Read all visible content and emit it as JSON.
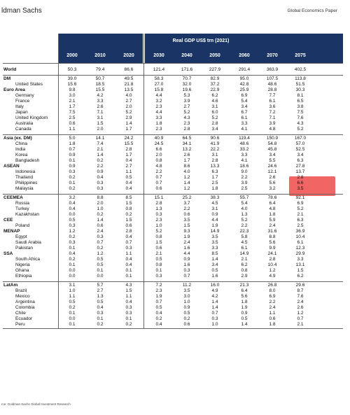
{
  "header": {
    "brand": "ldman Sachs",
    "publication": "Global Economics Paper"
  },
  "table": {
    "title": "Real GDP US$ trn (2021)",
    "years": [
      "2000",
      "2010",
      "2020",
      "2030",
      "2040",
      "2050",
      "2060",
      "2070",
      "2075"
    ],
    "groups": [
      {
        "rows": [
          {
            "label": "World",
            "style": "bold",
            "values": [
              "50.3",
              "79.4",
              "86.6",
              "121.4",
              "171.6",
              "227.9",
              "291.4",
              "363.9",
              "402.5"
            ]
          }
        ]
      },
      {
        "rows": [
          {
            "label": "DM",
            "style": "bold",
            "values": [
              "39.0",
              "50.7",
              "49.5",
              "58.3",
              "70.7",
              "82.9",
              "95.0",
              "107.5",
              "113.8"
            ]
          },
          {
            "label": "United States",
            "style": "sub",
            "values": [
              "15.6",
              "18.5",
              "21.8",
              "27.0",
              "32.0",
              "37.2",
              "42.8",
              "48.6",
              "51.5"
            ]
          },
          {
            "label": "Euro Area",
            "style": "bold",
            "values": [
              "9.8",
              "15.5",
              "13.5",
              "15.8",
              "19.6",
              "22.9",
              "25.9",
              "28.8",
              "30.3"
            ]
          },
          {
            "label": "Germany",
            "style": "sub",
            "values": [
              "3.0",
              "4.2",
              "4.0",
              "4.4",
              "5.3",
              "6.2",
              "6.9",
              "7.7",
              "8.1"
            ]
          },
          {
            "label": "France",
            "style": "sub",
            "values": [
              "2.1",
              "3.3",
              "2.7",
              "3.2",
              "3.9",
              "4.6",
              "5.4",
              "6.1",
              "6.5"
            ]
          },
          {
            "label": "Italy",
            "style": "sub",
            "values": [
              "1.7",
              "2.6",
              "2.0",
              "2.3",
              "2.7",
              "3.1",
              "3.4",
              "3.6",
              "3.8"
            ]
          },
          {
            "label": "Japan",
            "style": "sub",
            "values": [
              "7.5",
              "7.1",
              "5.2",
              "4.4",
              "5.2",
              "6.0",
              "6.7",
              "7.2",
              "7.5"
            ]
          },
          {
            "label": "United Kingdom",
            "style": "sub",
            "values": [
              "2.5",
              "3.1",
              "2.9",
              "3.3",
              "4.3",
              "5.2",
              "6.1",
              "7.1",
              "7.6"
            ]
          },
          {
            "label": "Australia",
            "style": "sub",
            "values": [
              "0.6",
              "1.5",
              "1.4",
              "1.8",
              "2.3",
              "2.8",
              "3.3",
              "3.9",
              "4.3"
            ]
          },
          {
            "label": "Canada",
            "style": "sub",
            "values": [
              "1.1",
              "2.0",
              "1.7",
              "2.3",
              "2.8",
              "3.4",
              "4.1",
              "4.8",
              "5.2"
            ]
          }
        ]
      },
      {
        "rows": [
          {
            "label": "Asia (ex. DM)",
            "style": "bold",
            "values": [
              "5.0",
              "14.1",
              "24.2",
              "40.9",
              "64.5",
              "90.6",
              "119.4",
              "150.9",
              "167.0"
            ]
          },
          {
            "label": "China",
            "style": "sub",
            "values": [
              "1.8",
              "7.4",
              "15.5",
              "24.5",
              "34.1",
              "41.9",
              "48.6",
              "54.8",
              "57.0"
            ]
          },
          {
            "label": "India",
            "style": "sub",
            "values": [
              "0.7",
              "2.1",
              "2.8",
              "6.6",
              "13.2",
              "22.2",
              "33.2",
              "45.8",
              "52.5"
            ]
          },
          {
            "label": "Korea",
            "style": "sub",
            "values": [
              "0.9",
              "1.4",
              "1.7",
              "2.0",
              "2.6",
              "3.1",
              "3.3",
              "3.4",
              "3.4"
            ]
          },
          {
            "label": "Bangladesh",
            "style": "sub",
            "values": [
              "0.1",
              "0.2",
              "0.4",
              "0.8",
              "1.7",
              "2.8",
              "4.1",
              "5.5",
              "6.3"
            ]
          },
          {
            "label": "ASEAN",
            "style": "bold",
            "values": [
              "0.9",
              "2.2",
              "2.7",
              "4.8",
              "8.6",
              "13.3",
              "18.6",
              "24.6",
              "27.8"
            ]
          },
          {
            "label": "Indonesia",
            "style": "sub",
            "values": [
              "0.3",
              "0.9",
              "1.1",
              "2.2",
              "4.0",
              "6.3",
              "9.0",
              "12.1",
              "13.7"
            ]
          },
          {
            "label": "Thailand",
            "style": "sub",
            "values": [
              "0.2",
              "0.4",
              "0.5",
              "0.7",
              "1.2",
              "1.7",
              "2.2",
              "2.6",
              "2.8"
            ]
          },
          {
            "label": "Philippines",
            "style": "sub",
            "values": [
              "0.1",
              "0.3",
              "0.4",
              "0.7",
              "1.4",
              "2.5",
              "3.9",
              "5.6",
              "6.6"
            ]
          },
          {
            "label": "Malaysia",
            "style": "sub",
            "values": [
              "0.2",
              "0.3",
              "0.4",
              "0.6",
              "1.2",
              "1.8",
              "2.5",
              "3.2",
              "3.5"
            ]
          }
        ]
      },
      {
        "rows": [
          {
            "label": "CEEMEA",
            "style": "bold",
            "values": [
              "3.2",
              "8.8",
              "8.5",
              "15.1",
              "25.2",
              "38.3",
              "55.7",
              "78.6",
              "92.1"
            ]
          },
          {
            "label": "Russia",
            "style": "sub",
            "values": [
              "0.4",
              "2.0",
              "1.5",
              "2.8",
              "3.7",
              "4.5",
              "5.4",
              "6.4",
              "6.9"
            ]
          },
          {
            "label": "Turkey",
            "style": "sub",
            "values": [
              "0.4",
              "1.0",
              "0.8",
              "1.3",
              "2.2",
              "3.1",
              "4.0",
              "4.8",
              "5.2"
            ]
          },
          {
            "label": "Kazakhstan",
            "style": "sub",
            "values": [
              "0.0",
              "0.2",
              "0.2",
              "0.3",
              "0.6",
              "0.9",
              "1.3",
              "1.8",
              "2.1"
            ]
          },
          {
            "label": "CEE",
            "style": "bold",
            "values": [
              "0.5",
              "1.4",
              "1.5",
              "2.3",
              "3.5",
              "4.4",
              "5.2",
              "5.9",
              "6.3"
            ]
          },
          {
            "label": "Poland",
            "style": "sub",
            "values": [
              "0.3",
              "0.6",
              "0.6",
              "1.0",
              "1.5",
              "1.9",
              "2.2",
              "2.4",
              "2.5"
            ]
          },
          {
            "label": "MENAP",
            "style": "bold",
            "values": [
              "1.2",
              "2.4",
              "2.8",
              "5.2",
              "9.3",
              "14.9",
              "22.3",
              "31.6",
              "36.9"
            ]
          },
          {
            "label": "Egypt",
            "style": "sub",
            "values": [
              "0.2",
              "0.3",
              "0.4",
              "0.8",
              "1.9",
              "3.5",
              "5.8",
              "8.8",
              "10.4"
            ]
          },
          {
            "label": "Saudi Arabia",
            "style": "sub",
            "values": [
              "0.3",
              "0.7",
              "0.7",
              "1.5",
              "2.4",
              "3.5",
              "4.5",
              "5.6",
              "6.1"
            ]
          },
          {
            "label": "Pakistan",
            "style": "sub",
            "values": [
              "0.1",
              "0.2",
              "0.3",
              "0.6",
              "1.6",
              "3.3",
              "6.1",
              "9.9",
              "12.3"
            ]
          },
          {
            "label": "SSA",
            "style": "bold",
            "values": [
              "0.4",
              "1.2",
              "1.1",
              "2.1",
              "4.4",
              "8.5",
              "14.9",
              "24.1",
              "29.9"
            ]
          },
          {
            "label": "South Africa",
            "style": "sub",
            "values": [
              "0.2",
              "0.5",
              "0.4",
              "0.5",
              "0.9",
              "1.4",
              "2.1",
              "2.8",
              "3.3"
            ]
          },
          {
            "label": "Nigeria",
            "style": "sub",
            "values": [
              "0.1",
              "0.5",
              "0.4",
              "0.8",
              "1.6",
              "3.4",
              "6.2",
              "10.4",
              "13.1"
            ]
          },
          {
            "label": "Ghana",
            "style": "sub",
            "values": [
              "0.0",
              "0.1",
              "0.1",
              "0.1",
              "0.3",
              "0.5",
              "0.8",
              "1.2",
              "1.5"
            ]
          },
          {
            "label": "Ethiopia",
            "style": "sub",
            "values": [
              "0.0",
              "0.0",
              "0.1",
              "0.3",
              "0.7",
              "1.6",
              "2.9",
              "4.9",
              "6.2"
            ]
          }
        ]
      },
      {
        "rows": [
          {
            "label": "LatAm",
            "style": "bold",
            "values": [
              "3.1",
              "5.7",
              "4.3",
              "7.2",
              "11.2",
              "16.0",
              "21.3",
              "26.8",
              "29.6"
            ]
          },
          {
            "label": "Brazil",
            "style": "sub",
            "values": [
              "1.0",
              "2.7",
              "1.5",
              "2.3",
              "3.5",
              "4.9",
              "6.4",
              "8.0",
              "8.7"
            ]
          },
          {
            "label": "Mexico",
            "style": "sub",
            "values": [
              "1.1",
              "1.3",
              "1.1",
              "1.9",
              "3.0",
              "4.2",
              "5.6",
              "6.9",
              "7.6"
            ]
          },
          {
            "label": "Argentina",
            "style": "sub",
            "values": [
              "0.5",
              "0.5",
              "0.4",
              "0.7",
              "1.0",
              "1.4",
              "1.8",
              "2.2",
              "2.4"
            ]
          },
          {
            "label": "Colombia",
            "style": "sub",
            "values": [
              "0.2",
              "0.4",
              "0.3",
              "0.5",
              "0.9",
              "1.4",
              "1.9",
              "2.4",
              "2.6"
            ]
          },
          {
            "label": "Chile",
            "style": "sub",
            "values": [
              "0.1",
              "0.3",
              "0.3",
              "0.4",
              "0.5",
              "0.7",
              "0.9",
              "1.1",
              "1.2"
            ]
          },
          {
            "label": "Ecuador",
            "style": "sub",
            "values": [
              "0.0",
              "0.1",
              "0.1",
              "0.2",
              "0.2",
              "0.3",
              "0.5",
              "0.6",
              "0.7"
            ]
          },
          {
            "label": "Peru",
            "style": "sub",
            "values": [
              "0.1",
              "0.2",
              "0.2",
              "0.4",
              "0.6",
              "1.0",
              "1.4",
              "1.8",
              "2.1"
            ]
          }
        ]
      }
    ]
  },
  "footnote": "rce: Goldman Sachs Global Investment Research",
  "highlight_color": "#ef4a4a"
}
